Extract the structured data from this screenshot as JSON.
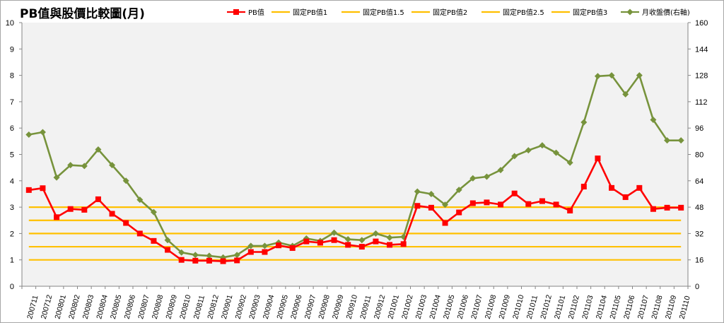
{
  "chart_data": {
    "type": "line",
    "title": "PB值與股價比較圖(月)",
    "xlabel": "",
    "ylabel": "",
    "ylim": [
      0,
      10
    ],
    "y_ticks": [
      0,
      1,
      2,
      3,
      4,
      5,
      6,
      7,
      8,
      9,
      10
    ],
    "y2lim": [
      0,
      160
    ],
    "y2_ticks": [
      0,
      16,
      32,
      48,
      64,
      80,
      96,
      112,
      128,
      144,
      160
    ],
    "grid": false,
    "legend_position": "top",
    "categories": [
      "200711",
      "200712",
      "200801",
      "200802",
      "200803",
      "200804",
      "200805",
      "200806",
      "200807",
      "200808",
      "200809",
      "200810",
      "200811",
      "200812",
      "200901",
      "200902",
      "200903",
      "200904",
      "200905",
      "200906",
      "200907",
      "200908",
      "200909",
      "200910",
      "200911",
      "200912",
      "201001",
      "201002",
      "201003",
      "201004",
      "201005",
      "201006",
      "201007",
      "201008",
      "201009",
      "201010",
      "201011",
      "201012",
      "201101",
      "201102",
      "201103",
      "201104",
      "201105",
      "201106",
      "201107",
      "201108",
      "201109",
      "201110"
    ],
    "series": [
      {
        "name": "PB值",
        "axis": "left",
        "color": "#ff0000",
        "marker": "square",
        "values": [
          3.65,
          3.72,
          2.62,
          2.93,
          2.9,
          3.3,
          2.75,
          2.4,
          2.0,
          1.72,
          1.38,
          1.0,
          0.97,
          0.97,
          0.95,
          0.98,
          1.3,
          1.3,
          1.55,
          1.45,
          1.7,
          1.65,
          1.75,
          1.57,
          1.5,
          1.7,
          1.57,
          1.6,
          3.05,
          2.98,
          2.4,
          2.8,
          3.15,
          3.18,
          3.1,
          3.52,
          3.12,
          3.23,
          3.1,
          2.87,
          3.78,
          4.85,
          3.73,
          3.38,
          3.73,
          2.93,
          2.98,
          2.98
        ]
      },
      {
        "name": "固定PB值1",
        "axis": "left",
        "color": "#ffc000",
        "constant": 1
      },
      {
        "name": "固定PB值1.5",
        "axis": "left",
        "color": "#ffc000",
        "constant": 1.5
      },
      {
        "name": "固定PB值2",
        "axis": "left",
        "color": "#ffc000",
        "constant": 2
      },
      {
        "name": "固定PB值2.5",
        "axis": "left",
        "color": "#ffc000",
        "constant": 2.5
      },
      {
        "name": "固定PB值3",
        "axis": "left",
        "color": "#ffc000",
        "constant": 3
      },
      {
        "name": "月收盤價(右軸)",
        "axis": "right",
        "color": "#77933c",
        "marker": "diamond",
        "values": [
          92,
          93.5,
          66,
          73.5,
          73,
          83,
          73.5,
          64,
          52.5,
          45,
          28,
          20.5,
          19,
          18.5,
          17.5,
          19,
          24.5,
          24.5,
          26.5,
          24.5,
          29,
          27.5,
          32.5,
          28.5,
          28,
          32,
          29.5,
          30,
          57.5,
          56,
          49.5,
          58.5,
          65.5,
          66.5,
          70.5,
          79,
          82.5,
          85.5,
          81,
          75,
          99.5,
          127.5,
          128,
          116.5,
          128,
          101,
          88.5,
          88.5
        ]
      }
    ]
  }
}
